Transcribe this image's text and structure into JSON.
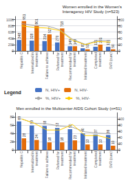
{
  "chart_data": [
    {
      "type": "bar",
      "title": "Women enrolled in the Women's\nInteragency HIV Study (n=523)",
      "categories": [
        "Hepatitis C",
        "Internalized in\ntreatment",
        "Failure to achieve",
        "Referred for\ntreatment",
        "Recommended for\ntreatment",
        "Initiated treatment",
        "Completed\ntreatment",
        "SVR (cure)"
      ],
      "ylim": [
        0,
        1100
      ],
      "yticks": [
        0,
        200,
        400,
        600,
        800,
        1000
      ],
      "y2lim": [
        0,
        110
      ],
      "y2ticks": [
        0,
        20,
        40,
        60,
        80,
        100
      ],
      "grid": true,
      "legend": "bottom",
      "annotations": [
        "Legend"
      ],
      "series": [
        {
          "name": "N, HIV+",
          "type": "bar",
          "color": "#4472C4",
          "values": [
            348,
            328,
            314,
            270,
            149,
            83,
            131,
            131
          ],
          "data_labels": true
        },
        {
          "name": "N, HIV-",
          "type": "bar",
          "color": "#E36C09",
          "values": [
            951,
            801,
            527,
            718,
            149,
            51,
            201,
            50
          ],
          "data_labels": true
        },
        {
          "name": "%, HIV+",
          "type": "line",
          "axis": "y2",
          "color": "#A6A6A6",
          "values": [
            87,
            82,
            80,
            68,
            37,
            21,
            33,
            33
          ]
        },
        {
          "name": "%, HIV-",
          "type": "line",
          "axis": "y2",
          "color": "#FFCC00",
          "values": [
            80,
            75,
            73,
            65,
            34,
            20,
            30,
            28
          ]
        }
      ]
    },
    {
      "type": "bar",
      "title": "Men enrolled in the Multicenter AIDS Cohort Study (n=51)",
      "categories": [
        "Hepatitis C",
        "Internalized in\ntreatment",
        "Failure to achieve",
        "Referred for\ntreatment",
        "Recommended for\ntreatment",
        "Initiated treatment",
        "Completed\ntreatment",
        "SVR (cure)"
      ],
      "ylim": [
        0,
        90
      ],
      "yticks": [
        0,
        20,
        40,
        60,
        80
      ],
      "y2lim": [
        0,
        120
      ],
      "y2ticks": [
        0,
        20,
        40,
        60,
        80,
        100
      ],
      "grid": true,
      "series": [
        {
          "name": "N, HIV+",
          "type": "bar",
          "color": "#4472C4",
          "values": [
            69,
            59,
            58,
            53,
            50,
            40,
            37,
            36
          ],
          "data_labels": true
        },
        {
          "name": "N, HIV-",
          "type": "bar",
          "color": "#E36C09",
          "values": [
            28,
            24,
            18,
            18,
            23,
            13,
            13,
            10
          ],
          "data_labels": true
        },
        {
          "name": "%, HIV+",
          "type": "line",
          "axis": "y2",
          "color": "#A6A6A6",
          "values": [
            100,
            86,
            84,
            77,
            73,
            58,
            54,
            52
          ]
        },
        {
          "name": "%, HIV-",
          "type": "line",
          "axis": "y2",
          "color": "#FFCC00",
          "values": [
            100,
            86,
            64,
            64,
            82,
            46,
            46,
            36
          ]
        }
      ]
    }
  ]
}
